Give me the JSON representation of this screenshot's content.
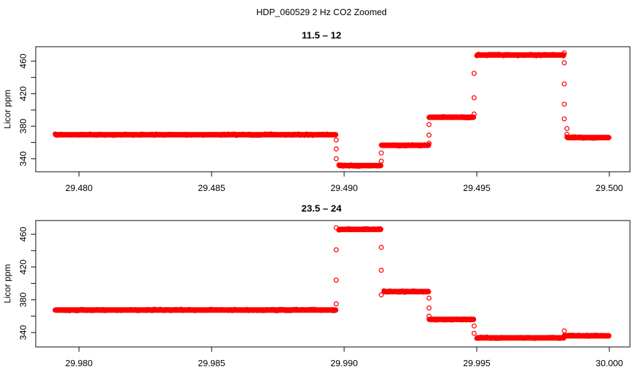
{
  "title": "HDP_060529  2 Hz CO2 Zoomed",
  "colors": {
    "points": "#ff0000",
    "axis": "#000000"
  },
  "chart_data": [
    {
      "type": "scatter",
      "title": "11.5 – 12",
      "xlabel": "",
      "ylabel": "Licor ppm",
      "xlim": [
        29.4791,
        29.5008
      ],
      "ylim": [
        327,
        475
      ],
      "xticks": [
        29.48,
        29.485,
        29.49,
        29.495,
        29.5
      ],
      "xtick_labels": [
        "29.480",
        "29.485",
        "29.490",
        "29.495",
        "29.500"
      ],
      "yticks": [
        340,
        420,
        460,
        380
      ],
      "ytick_labels": [
        "340",
        "420",
        "460",
        "380"
      ],
      "yminor_ticks": [
        360,
        400,
        440
      ],
      "grid": false,
      "marker": "open-circle",
      "segments": [
        {
          "x0": 29.4791,
          "x1": 29.4897,
          "y": 369.5
        },
        {
          "x0": 29.4898,
          "x1": 29.4914,
          "y": 331.5
        },
        {
          "x0": 29.4914,
          "x1": 29.4932,
          "y": 356.5
        },
        {
          "x0": 29.4932,
          "x1": 29.4949,
          "y": 391
        },
        {
          "x0": 29.495,
          "x1": 29.4983,
          "y": 467.5
        },
        {
          "x0": 29.4984,
          "x1": 29.5,
          "y": 366
        }
      ],
      "transition_points": [
        {
          "x": 29.4897,
          "y": 363
        },
        {
          "x": 29.4897,
          "y": 352
        },
        {
          "x": 29.4897,
          "y": 340
        },
        {
          "x": 29.4914,
          "x_": 0,
          "y": 337
        },
        {
          "x": 29.4914,
          "y": 347
        },
        {
          "x": 29.4932,
          "y": 359
        },
        {
          "x": 29.4932,
          "y": 369
        },
        {
          "x": 29.4932,
          "y": 382
        },
        {
          "x": 29.4949,
          "y": 395
        },
        {
          "x": 29.4949,
          "y": 415
        },
        {
          "x": 29.4949,
          "y": 445
        },
        {
          "x": 29.4983,
          "y": 470
        },
        {
          "x": 29.4983,
          "y": 458
        },
        {
          "x": 29.4983,
          "y": 432
        },
        {
          "x": 29.4983,
          "y": 407
        },
        {
          "x": 29.4983,
          "y": 389
        },
        {
          "x": 29.4984,
          "y": 377
        },
        {
          "x": 29.4984,
          "y": 370
        }
      ]
    },
    {
      "type": "scatter",
      "title": "23.5 – 24",
      "xlabel": "",
      "ylabel": "Licor ppm",
      "xlim": [
        29.9791,
        30.0008
      ],
      "ylim": [
        327,
        475
      ],
      "xticks": [
        29.98,
        29.985,
        29.99,
        29.995,
        30.0
      ],
      "xtick_labels": [
        "29.980",
        "29.985",
        "29.990",
        "29.995",
        "30.000"
      ],
      "yticks": [
        340,
        420,
        460,
        380
      ],
      "ytick_labels": [
        "340",
        "420",
        "460",
        "380"
      ],
      "yminor_ticks": [
        360,
        400,
        440
      ],
      "grid": false,
      "marker": "open-circle",
      "segments": [
        {
          "x0": 29.9791,
          "x1": 29.9897,
          "y": 367.5
        },
        {
          "x0": 29.9898,
          "x1": 29.9914,
          "y": 466
        },
        {
          "x0": 29.9915,
          "x1": 29.9932,
          "y": 390
        },
        {
          "x0": 29.9932,
          "x1": 29.9949,
          "y": 356
        },
        {
          "x0": 29.995,
          "x1": 29.9983,
          "y": 333.5
        },
        {
          "x0": 29.9983,
          "x1": 30.0,
          "y": 336
        }
      ],
      "transition_points": [
        {
          "x": 29.9897,
          "y": 375
        },
        {
          "x": 29.9897,
          "y": 404
        },
        {
          "x": 29.9897,
          "y": 441
        },
        {
          "x": 29.9897,
          "y": 468
        },
        {
          "x": 29.9914,
          "y": 444
        },
        {
          "x": 29.9914,
          "y": 416
        },
        {
          "x": 29.9914,
          "y": 386
        },
        {
          "x": 29.9932,
          "y": 382
        },
        {
          "x": 29.9932,
          "y": 370
        },
        {
          "x": 29.9932,
          "y": 360
        },
        {
          "x": 29.9949,
          "y": 348
        },
        {
          "x": 29.9949,
          "y": 339
        },
        {
          "x": 29.9983,
          "y": 342
        }
      ]
    }
  ]
}
